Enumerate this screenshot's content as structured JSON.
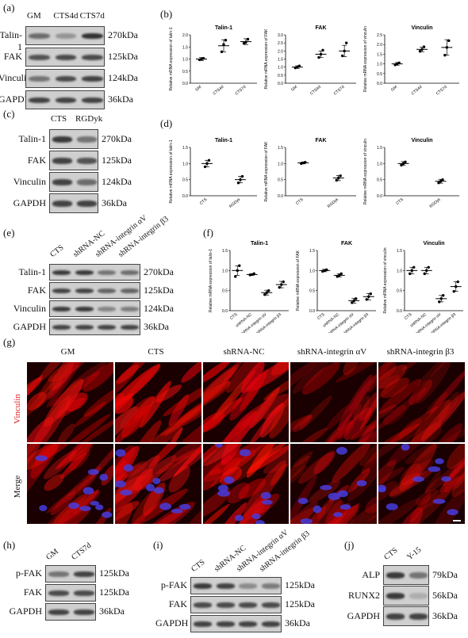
{
  "panels": {
    "a": {
      "label": "(a)",
      "lanes": [
        "GM",
        "CTS4d",
        "CTS7d"
      ],
      "rows": [
        {
          "protein": "Talin-1",
          "kda": "270kDa",
          "bands": [
            0.6,
            0.35,
            0.95
          ]
        },
        {
          "protein": "FAK",
          "kda": "125kDa",
          "bands": [
            0.75,
            0.8,
            0.8
          ]
        },
        {
          "protein": "Vinculin",
          "kda": "124kDa",
          "bands": [
            0.55,
            0.8,
            0.85
          ]
        },
        {
          "protein": "GAPDH",
          "kda": "36kDa",
          "bands": [
            0.85,
            0.85,
            0.85
          ]
        }
      ]
    },
    "b": {
      "label": "(b)"
    },
    "c": {
      "label": "(c)",
      "lanes": [
        "CTS",
        "RGDyk"
      ],
      "rows": [
        {
          "protein": "Talin-1",
          "kda": "270kDa",
          "bands": [
            0.9,
            0.55
          ]
        },
        {
          "protein": "FAK",
          "kda": "125kDa",
          "bands": [
            0.85,
            0.75
          ]
        },
        {
          "protein": "Vinculin",
          "kda": "124kDa",
          "bands": [
            0.85,
            0.6
          ]
        },
        {
          "protein": "GAPDH",
          "kda": "36kDa",
          "bands": [
            0.85,
            0.85
          ]
        }
      ]
    },
    "d": {
      "label": "(d)"
    },
    "e": {
      "label": "(e)",
      "lanes": [
        "CTS",
        "shRNA-NC",
        "shRNA-integrin αV",
        "shRNA-integrin β3"
      ],
      "rows": [
        {
          "protein": "Talin-1",
          "kda": "270kDa",
          "bands": [
            0.9,
            0.9,
            0.55,
            0.6
          ]
        },
        {
          "protein": "FAK",
          "kda": "125kDa",
          "bands": [
            0.85,
            0.85,
            0.65,
            0.65
          ]
        },
        {
          "protein": "Vinculin",
          "kda": "124kDa",
          "bands": [
            0.9,
            0.9,
            0.45,
            0.5
          ]
        },
        {
          "protein": "GAPDH",
          "kda": "36kDa",
          "bands": [
            0.85,
            0.85,
            0.85,
            0.85
          ]
        }
      ]
    },
    "f": {
      "label": "(f)"
    },
    "g": {
      "label": "(g)",
      "columns": [
        "GM",
        "CTS",
        "shRNA-NC",
        "shRNA-integrin αV",
        "shRNA-integrin β3"
      ],
      "rows": [
        "Vinculin",
        "Merge"
      ]
    },
    "h": {
      "label": "(h)",
      "lanes": [
        "GM",
        "CTS7d"
      ],
      "rows": [
        {
          "protein": "p-FAK",
          "kda": "125kDa",
          "bands": [
            0.55,
            0.85
          ]
        },
        {
          "protein": "FAK",
          "kda": "125kDa",
          "bands": [
            0.8,
            0.8
          ]
        },
        {
          "protein": "GAPDH",
          "kda": "36kDa",
          "bands": [
            0.85,
            0.85
          ]
        }
      ]
    },
    "i": {
      "label": "(i)",
      "lanes": [
        "CTS",
        "shRNA-NC",
        "shRNA-integrin αV",
        "shRNA-integrin β3"
      ],
      "rows": [
        {
          "protein": "p-FAK",
          "kda": "125kDa",
          "bands": [
            0.9,
            0.85,
            0.4,
            0.5
          ]
        },
        {
          "protein": "FAK",
          "kda": "125kDa",
          "bands": [
            0.8,
            0.8,
            0.8,
            0.8
          ]
        },
        {
          "protein": "GAPDH",
          "kda": "36kDa",
          "bands": [
            0.85,
            0.85,
            0.85,
            0.85
          ]
        }
      ]
    },
    "j": {
      "label": "(j)",
      "lanes": [
        "CTS",
        "Y-15"
      ],
      "rows": [
        {
          "protein": "ALP",
          "kda": "79kDa",
          "bands": [
            0.9,
            0.55
          ]
        },
        {
          "protein": "RUNX2",
          "kda": "56kDa",
          "bands": [
            0.9,
            0.2
          ]
        },
        {
          "protein": "GAPDH",
          "kda": "36kDa",
          "bands": [
            0.85,
            0.85
          ]
        }
      ]
    }
  },
  "chart_data": [
    {
      "panel": "b",
      "type": "scatter",
      "title": "Talin-1",
      "ylabel": "Relative mRNA expression of talin-1",
      "categories": [
        "GM",
        "CTS4d",
        "CTS7d"
      ],
      "ylim": [
        0,
        2.0
      ],
      "yticks": [
        0,
        0.5,
        1.0,
        1.5,
        2.0
      ],
      "means": [
        1.0,
        1.55,
        1.72
      ],
      "sd": [
        0.06,
        0.25,
        0.12
      ],
      "points": [
        [
          0.97,
          1.0,
          1.03
        ],
        [
          1.3,
          1.6,
          1.78
        ],
        [
          1.65,
          1.7,
          1.82
        ]
      ]
    },
    {
      "panel": "b",
      "type": "scatter",
      "title": "FAK",
      "ylabel": "Relative mRNA expression of FAK",
      "categories": [
        "GM",
        "CTS4d",
        "CTS7d"
      ],
      "ylim": [
        0,
        3.0
      ],
      "yticks": [
        0,
        0.5,
        1.0,
        1.5,
        2.0,
        2.5,
        3.0
      ],
      "means": [
        1.0,
        1.8,
        2.0
      ],
      "sd": [
        0.08,
        0.2,
        0.35
      ],
      "points": [
        [
          0.95,
          1.0,
          1.07
        ],
        [
          1.6,
          1.8,
          2.05
        ],
        [
          1.7,
          2.0,
          2.5
        ]
      ]
    },
    {
      "panel": "b",
      "type": "scatter",
      "title": "Vinculin",
      "ylabel": "Relative mRNA expression of vinculin",
      "categories": [
        "GM",
        "CTS4d",
        "CTS7d"
      ],
      "ylim": [
        0,
        2.5
      ],
      "yticks": [
        0,
        0.5,
        1.0,
        1.5,
        2.0,
        2.5
      ],
      "means": [
        1.0,
        1.75,
        1.85
      ],
      "sd": [
        0.07,
        0.12,
        0.4
      ],
      "points": [
        [
          0.95,
          1.0,
          1.05
        ],
        [
          1.65,
          1.75,
          1.88
        ],
        [
          1.45,
          1.85,
          2.2
        ]
      ]
    },
    {
      "panel": "d",
      "type": "scatter",
      "title": "Talin-1",
      "ylabel": "Relative mRNA expression of talin-1",
      "categories": [
        "CTS",
        "RGDyk"
      ],
      "ylim": [
        0,
        1.5
      ],
      "yticks": [
        0,
        0.5,
        1.0,
        1.5
      ],
      "means": [
        1.0,
        0.5
      ],
      "sd": [
        0.1,
        0.1
      ],
      "points": [
        [
          0.9,
          1.0,
          1.1
        ],
        [
          0.4,
          0.5,
          0.6
        ]
      ]
    },
    {
      "panel": "d",
      "type": "scatter",
      "title": "FAK",
      "ylabel": "Relative mRNA expression of FAK",
      "categories": [
        "CTS",
        "RGDyk"
      ],
      "ylim": [
        0,
        1.5
      ],
      "yticks": [
        0,
        0.5,
        1.0,
        1.5
      ],
      "means": [
        1.02,
        0.55
      ],
      "sd": [
        0.03,
        0.08
      ],
      "points": [
        [
          1.0,
          1.02,
          1.04
        ],
        [
          0.48,
          0.55,
          0.62
        ]
      ]
    },
    {
      "panel": "d",
      "type": "scatter",
      "title": "Vinculin",
      "ylabel": "Relative mRNA expression of vinculin",
      "categories": [
        "CTS",
        "RGDyk"
      ],
      "ylim": [
        0,
        1.5
      ],
      "yticks": [
        0,
        0.5,
        1.0,
        1.5
      ],
      "means": [
        1.0,
        0.45
      ],
      "sd": [
        0.06,
        0.06
      ],
      "points": [
        [
          0.95,
          1.0,
          1.05
        ],
        [
          0.4,
          0.45,
          0.5
        ]
      ]
    },
    {
      "panel": "f",
      "type": "scatter",
      "title": "Talin-1",
      "ylabel": "Relative mRNA expression of talin-1",
      "categories": [
        "CTS",
        "shRNA-NC",
        "shRNA-integrin αV",
        "shRNA-integrin β3"
      ],
      "ylim": [
        0,
        1.5
      ],
      "yticks": [
        0,
        0.5,
        1.0,
        1.5
      ],
      "means": [
        1.0,
        0.9,
        0.45,
        0.65
      ],
      "sd": [
        0.12,
        0.02,
        0.06,
        0.08
      ],
      "points": [
        [
          0.85,
          1.0,
          1.12
        ],
        [
          0.89,
          0.9,
          0.92
        ],
        [
          0.4,
          0.45,
          0.5
        ],
        [
          0.58,
          0.65,
          0.72
        ]
      ]
    },
    {
      "panel": "f",
      "type": "scatter",
      "title": "FAK",
      "ylabel": "Relative mRNA expression of FAK",
      "categories": [
        "CTS",
        "shRNA-NC",
        "shRNA-integrin αV",
        "shRNA-integrin β3"
      ],
      "ylim": [
        0,
        1.5
      ],
      "yticks": [
        0,
        0.5,
        1.0,
        1.5
      ],
      "means": [
        1.0,
        0.88,
        0.25,
        0.35
      ],
      "sd": [
        0.03,
        0.04,
        0.06,
        0.08
      ],
      "points": [
        [
          0.98,
          1.0,
          1.02
        ],
        [
          0.85,
          0.88,
          0.92
        ],
        [
          0.2,
          0.25,
          0.3
        ],
        [
          0.28,
          0.35,
          0.42
        ]
      ]
    },
    {
      "panel": "f",
      "type": "scatter",
      "title": "Vinculin",
      "ylabel": "Relative mRNA expression of vinculin",
      "categories": [
        "CTS",
        "shRNA-NC",
        "shRNA-integrin αV",
        "shRNA-integrin β3"
      ],
      "ylim": [
        0,
        1.5
      ],
      "yticks": [
        0,
        0.5,
        1.0,
        1.5
      ],
      "means": [
        1.0,
        1.0,
        0.3,
        0.6
      ],
      "sd": [
        0.08,
        0.08,
        0.08,
        0.12
      ],
      "points": [
        [
          0.92,
          1.0,
          1.08
        ],
        [
          0.92,
          1.0,
          1.08
        ],
        [
          0.22,
          0.3,
          0.38
        ],
        [
          0.48,
          0.6,
          0.72
        ]
      ]
    }
  ]
}
